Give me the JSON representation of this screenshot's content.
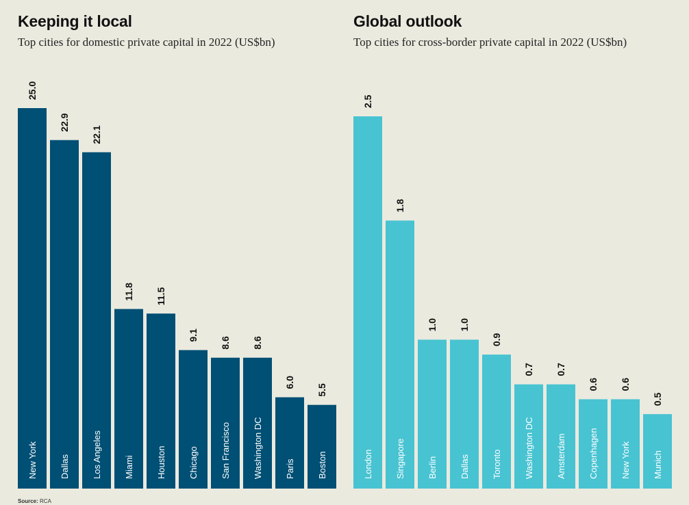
{
  "charts": [
    {
      "title": "Keeping it local",
      "subtitle": "Top cities for domestic private capital in 2022 (US$bn)",
      "color": "#004f74",
      "chart_data": {
        "type": "bar",
        "categories": [
          "New York",
          "Dallas",
          "Los Angeles",
          "Miami",
          "Houston",
          "Chicago",
          "San Francisco",
          "Washington DC",
          "Paris",
          "Boston"
        ],
        "values": [
          25.0,
          22.9,
          22.1,
          11.8,
          11.5,
          9.1,
          8.6,
          8.6,
          6.0,
          5.5
        ],
        "value_labels": [
          "25.0",
          "22.9",
          "22.1",
          "11.8",
          "11.5",
          "9.1",
          "8.6",
          "8.6",
          "6.0",
          "5.5"
        ],
        "title": "Keeping it local",
        "xlabel": "",
        "ylabel": "",
        "ylim": [
          0,
          25.0
        ],
        "grid": false,
        "legend": "none"
      }
    },
    {
      "title": "Global outlook",
      "subtitle": "Top cities for cross-border private capital in 2022 (US$bn)",
      "color": "#48c3d2",
      "chart_data": {
        "type": "bar",
        "categories": [
          "London",
          "Singapore",
          "Berlin",
          "Dallas",
          "Toronto",
          "Washington DC",
          "Amsterdam",
          "Copenhagen",
          "New York",
          "Munich"
        ],
        "values": [
          2.5,
          1.8,
          1.0,
          1.0,
          0.9,
          0.7,
          0.7,
          0.6,
          0.6,
          0.5
        ],
        "value_labels": [
          "2.5",
          "1.8",
          "1.0",
          "1.0",
          "0.9",
          "0.7",
          "0.7",
          "0.6",
          "0.6",
          "0.5"
        ],
        "title": "Global outlook",
        "xlabel": "",
        "ylabel": "",
        "ylim": [
          0,
          2.5
        ],
        "grid": false,
        "legend": "none"
      }
    }
  ],
  "source": {
    "label": "Source:",
    "text": "RCA"
  }
}
